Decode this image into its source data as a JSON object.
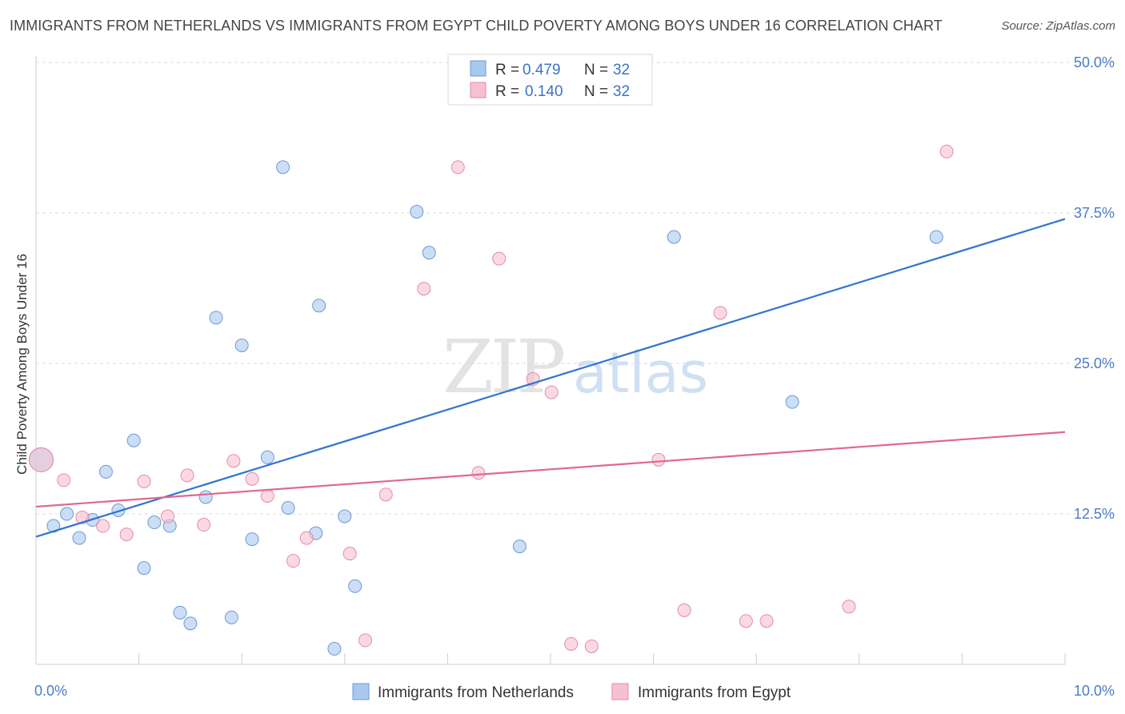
{
  "title": "IMMIGRANTS FROM NETHERLANDS VS IMMIGRANTS FROM EGYPT CHILD POVERTY AMONG BOYS UNDER 16 CORRELATION CHART",
  "source": "Source: ZipAtlas.com",
  "watermark": {
    "zip": "ZIP",
    "atlas": "atlas"
  },
  "legend": {
    "r_label": "R =",
    "n_label": "N =",
    "rows": [
      {
        "r": "0.479",
        "n": "32"
      },
      {
        "r": "0.140",
        "n": "32"
      }
    ]
  },
  "chart_data": {
    "type": "scatter",
    "title": "IMMIGRANTS FROM NETHERLANDS VS IMMIGRANTS FROM EGYPT CHILD POVERTY AMONG BOYS UNDER 16 CORRELATION CHART",
    "xlabel": "",
    "ylabel": "Child Poverty Among Boys Under 16",
    "xlim": [
      0,
      10
    ],
    "ylim": [
      0,
      50
    ],
    "x_tick_labels": [
      "0.0%",
      "10.0%"
    ],
    "y_ticks": [
      12.5,
      25.0,
      37.5,
      50.0
    ],
    "y_tick_labels": [
      "12.5%",
      "25.0%",
      "37.5%",
      "50.0%"
    ],
    "grid": "horizontal dashed",
    "legend_position": "top-center",
    "series": [
      {
        "name": "Immigrants from Netherlands",
        "color": "#a9c8ee",
        "edge": "#6a9ad8",
        "line_color": "#2f74d0",
        "trend": [
          [
            0,
            10.6
          ],
          [
            10,
            37.0
          ]
        ],
        "points": [
          [
            0.05,
            17.0
          ],
          [
            0.17,
            11.5
          ],
          [
            0.3,
            12.5
          ],
          [
            0.42,
            10.5
          ],
          [
            0.55,
            12.0
          ],
          [
            0.68,
            16.0
          ],
          [
            0.8,
            12.8
          ],
          [
            0.95,
            18.6
          ],
          [
            1.05,
            8.0
          ],
          [
            1.15,
            11.8
          ],
          [
            1.3,
            11.5
          ],
          [
            1.4,
            4.3
          ],
          [
            1.5,
            3.4
          ],
          [
            1.65,
            13.9
          ],
          [
            1.75,
            28.8
          ],
          [
            1.9,
            3.9
          ],
          [
            2.0,
            26.5
          ],
          [
            2.1,
            10.4
          ],
          [
            2.25,
            17.2
          ],
          [
            2.4,
            41.3
          ],
          [
            2.45,
            13.0
          ],
          [
            2.72,
            10.9
          ],
          [
            2.75,
            29.8
          ],
          [
            2.9,
            1.3
          ],
          [
            3.0,
            12.3
          ],
          [
            3.1,
            6.5
          ],
          [
            3.7,
            37.6
          ],
          [
            3.82,
            34.2
          ],
          [
            4.7,
            9.8
          ],
          [
            6.2,
            35.5
          ],
          [
            7.35,
            21.8
          ],
          [
            8.75,
            35.5
          ]
        ]
      },
      {
        "name": "Immigrants from Egypt",
        "color": "#f6c0d0",
        "edge": "#e68aa6",
        "line_color": "#e06890",
        "trend": [
          [
            0,
            13.1
          ],
          [
            10,
            19.3
          ]
        ],
        "points": [
          [
            0.05,
            17.0
          ],
          [
            0.27,
            15.3
          ],
          [
            0.45,
            12.2
          ],
          [
            0.65,
            11.5
          ],
          [
            0.88,
            10.8
          ],
          [
            1.05,
            15.2
          ],
          [
            1.28,
            12.3
          ],
          [
            1.47,
            15.7
          ],
          [
            1.63,
            11.6
          ],
          [
            1.92,
            16.9
          ],
          [
            2.1,
            15.4
          ],
          [
            2.25,
            14.0
          ],
          [
            2.5,
            8.6
          ],
          [
            2.63,
            10.5
          ],
          [
            3.05,
            9.2
          ],
          [
            3.2,
            2.0
          ],
          [
            3.4,
            14.1
          ],
          [
            3.77,
            31.2
          ],
          [
            4.1,
            41.3
          ],
          [
            4.3,
            15.9
          ],
          [
            4.5,
            33.7
          ],
          [
            4.83,
            23.7
          ],
          [
            5.01,
            22.6
          ],
          [
            5.2,
            1.7
          ],
          [
            5.4,
            1.5
          ],
          [
            6.05,
            17.0
          ],
          [
            6.3,
            4.5
          ],
          [
            6.65,
            29.2
          ],
          [
            6.9,
            3.6
          ],
          [
            7.1,
            3.6
          ],
          [
            7.9,
            4.8
          ],
          [
            8.85,
            42.6
          ]
        ]
      }
    ]
  }
}
